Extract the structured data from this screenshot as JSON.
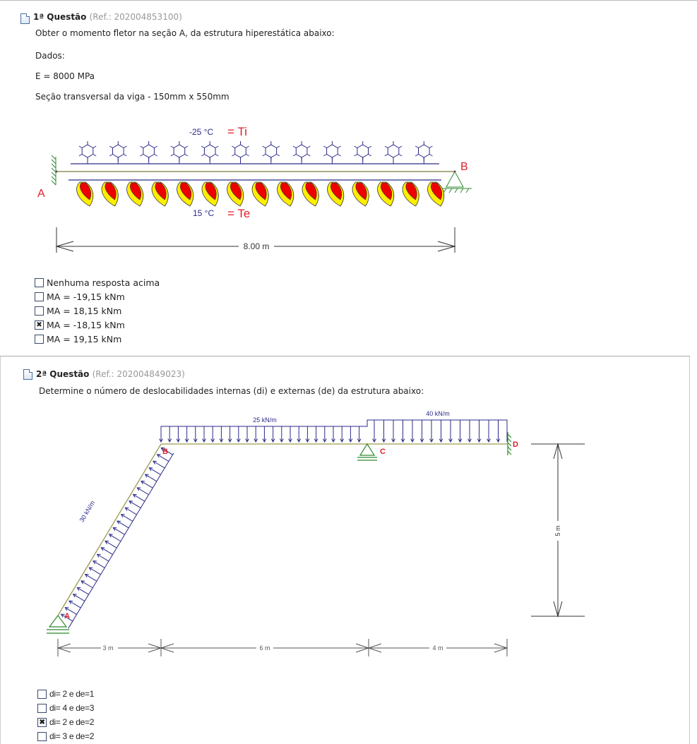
{
  "questions": [
    {
      "title": "1ª Questão",
      "ref": "(Ref.: 202004853100)",
      "statement": "Obter o momento fletor na seção A, da estrutura hiperestática abaixo:",
      "lines": [
        "Dados:",
        "E = 8000 MPa",
        "Seção transversal da viga - 150mm x 550mm"
      ],
      "figure": {
        "ti_value": "-25 °C",
        "ti_label": "= Ti",
        "te_value": "15 °C",
        "te_label": "= Te",
        "node_a": "A",
        "node_b": "B",
        "span": "8.00 m",
        "snowflake_count": 12,
        "flame_count": 15
      },
      "options": [
        {
          "label": "Nenhuma resposta acima",
          "checked": false
        },
        {
          "label": "MA = -19,15 kNm",
          "checked": false
        },
        {
          "label": "MA = 18,15 kNm",
          "checked": false
        },
        {
          "label": "MA = -18,15 kNm",
          "checked": true
        },
        {
          "label": "MA = 19,15 kNm",
          "checked": false
        }
      ]
    },
    {
      "title": "2ª Questão",
      "ref": "(Ref.: 202004849023)",
      "statement": "Determine o número de deslocabilidades internas (di) e externas (de) da estrutura abaixo:",
      "figure": {
        "load_inclined": "30 kN/m",
        "load_bc": "25 kN/m",
        "load_cd": "40 kN/m",
        "node_a": "A",
        "node_b": "B",
        "node_c": "C",
        "node_d": "D",
        "height": "5 m",
        "spans": [
          "3 m",
          "6 m",
          "4 m"
        ]
      },
      "options": [
        {
          "label": "di= 2 e de=1",
          "checked": false
        },
        {
          "label": "di= 4 e de=3",
          "checked": false
        },
        {
          "label": "di= 2 e de=2",
          "checked": true
        },
        {
          "label": "di= 3 e de=2",
          "checked": false
        }
      ]
    }
  ],
  "check_mark": "✖",
  "colors": {
    "load": "#2a2a8a",
    "label_red": "#e0202a",
    "support": "#2e8b2e",
    "beam": "#9a9a50",
    "flame_red": "#ee0000",
    "flame_yellow": "#ffee00"
  }
}
